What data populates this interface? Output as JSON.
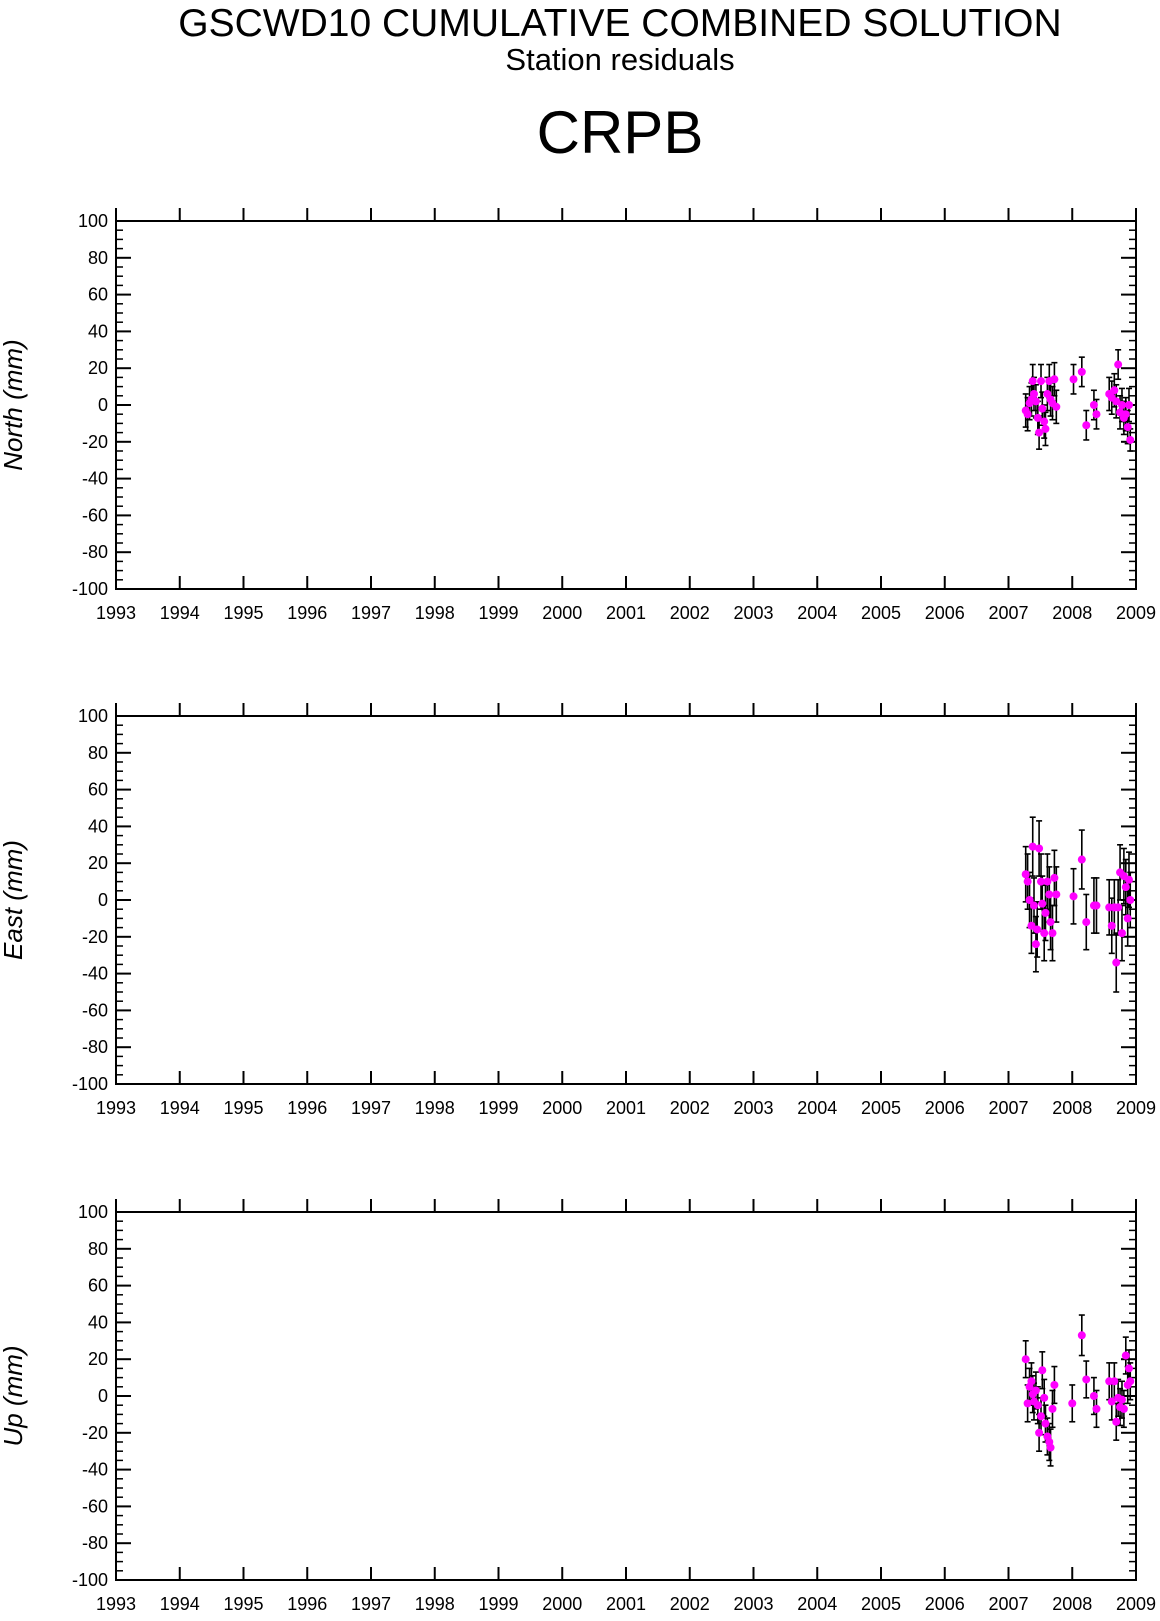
{
  "header": {
    "title": "GSCWD10 CUMULATIVE COMBINED SOLUTION",
    "subtitle": "Station residuals",
    "station": "CRPB"
  },
  "colors": {
    "point": "#ff00ff",
    "errorbar": "#000000",
    "axis": "#000000"
  },
  "chart_data": [
    {
      "type": "scatter",
      "ylabel": "North (mm)",
      "xlim": [
        1993,
        2009
      ],
      "ylim": [
        -100,
        100
      ],
      "x_ticks": [
        "1993",
        "1994",
        "1995",
        "1996",
        "1997",
        "1998",
        "1999",
        "2000",
        "2001",
        "2002",
        "2003",
        "2004",
        "2005",
        "2006",
        "2007",
        "2008",
        "2009"
      ],
      "y_ticks": [
        "100",
        "80",
        "60",
        "40",
        "20",
        "0",
        "-20",
        "-40",
        "-60",
        "-80",
        "-100"
      ],
      "grid": false,
      "points": [
        {
          "x": 2007.27,
          "y": -3,
          "err": 9
        },
        {
          "x": 2007.3,
          "y": -5,
          "err": 9
        },
        {
          "x": 2007.33,
          "y": 1,
          "err": 9
        },
        {
          "x": 2007.36,
          "y": 3,
          "err": 9
        },
        {
          "x": 2007.38,
          "y": 13,
          "err": 9
        },
        {
          "x": 2007.4,
          "y": 6,
          "err": 9
        },
        {
          "x": 2007.43,
          "y": 2,
          "err": 9
        },
        {
          "x": 2007.46,
          "y": -7,
          "err": 9
        },
        {
          "x": 2007.48,
          "y": -15,
          "err": 9
        },
        {
          "x": 2007.51,
          "y": 13,
          "err": 9
        },
        {
          "x": 2007.53,
          "y": -2,
          "err": 9
        },
        {
          "x": 2007.56,
          "y": -9,
          "err": 9
        },
        {
          "x": 2007.58,
          "y": -13,
          "err": 9
        },
        {
          "x": 2007.61,
          "y": 6,
          "err": 9
        },
        {
          "x": 2007.64,
          "y": 13,
          "err": 9
        },
        {
          "x": 2007.66,
          "y": 3,
          "err": 9
        },
        {
          "x": 2007.69,
          "y": 1,
          "err": 9
        },
        {
          "x": 2007.72,
          "y": 14,
          "err": 9
        },
        {
          "x": 2007.75,
          "y": -1,
          "err": 9
        },
        {
          "x": 2008.02,
          "y": 14,
          "err": 8
        },
        {
          "x": 2008.15,
          "y": 18,
          "err": 8
        },
        {
          "x": 2008.22,
          "y": -11,
          "err": 8
        },
        {
          "x": 2008.34,
          "y": 0,
          "err": 8
        },
        {
          "x": 2008.38,
          "y": -5,
          "err": 8
        },
        {
          "x": 2008.58,
          "y": 6,
          "err": 9
        },
        {
          "x": 2008.62,
          "y": 4,
          "err": 9
        },
        {
          "x": 2008.66,
          "y": 8,
          "err": 9
        },
        {
          "x": 2008.69,
          "y": 2,
          "err": 9
        },
        {
          "x": 2008.72,
          "y": 22,
          "err": 8
        },
        {
          "x": 2008.75,
          "y": -4,
          "err": 9
        },
        {
          "x": 2008.78,
          "y": 0,
          "err": 9
        },
        {
          "x": 2008.81,
          "y": -7,
          "err": 9
        },
        {
          "x": 2008.84,
          "y": -5,
          "err": 9
        },
        {
          "x": 2008.87,
          "y": -12,
          "err": 9
        },
        {
          "x": 2008.89,
          "y": 0,
          "err": 9
        },
        {
          "x": 2008.91,
          "y": -19,
          "err": 6
        }
      ]
    },
    {
      "type": "scatter",
      "ylabel": "East (mm)",
      "xlim": [
        1993,
        2009
      ],
      "ylim": [
        -100,
        100
      ],
      "x_ticks": [
        "1993",
        "1994",
        "1995",
        "1996",
        "1997",
        "1998",
        "1999",
        "2000",
        "2001",
        "2002",
        "2003",
        "2004",
        "2005",
        "2006",
        "2007",
        "2008",
        "2009"
      ],
      "y_ticks": [
        "100",
        "80",
        "60",
        "40",
        "20",
        "0",
        "-20",
        "-40",
        "-60",
        "-80",
        "-100"
      ],
      "grid": false,
      "points": [
        {
          "x": 2007.27,
          "y": 14,
          "err": 15
        },
        {
          "x": 2007.3,
          "y": 10,
          "err": 15
        },
        {
          "x": 2007.33,
          "y": 0,
          "err": 15
        },
        {
          "x": 2007.36,
          "y": -14,
          "err": 15
        },
        {
          "x": 2007.38,
          "y": 29,
          "err": 16
        },
        {
          "x": 2007.4,
          "y": -3,
          "err": 15
        },
        {
          "x": 2007.43,
          "y": -24,
          "err": 15
        },
        {
          "x": 2007.45,
          "y": -16,
          "err": 15
        },
        {
          "x": 2007.48,
          "y": 28,
          "err": 15
        },
        {
          "x": 2007.51,
          "y": 10,
          "err": 15
        },
        {
          "x": 2007.53,
          "y": -2,
          "err": 15
        },
        {
          "x": 2007.56,
          "y": -18,
          "err": 15
        },
        {
          "x": 2007.58,
          "y": -7,
          "err": 15
        },
        {
          "x": 2007.61,
          "y": 10,
          "err": 15
        },
        {
          "x": 2007.64,
          "y": 3,
          "err": 15
        },
        {
          "x": 2007.66,
          "y": -12,
          "err": 15
        },
        {
          "x": 2007.69,
          "y": -18,
          "err": 15
        },
        {
          "x": 2007.72,
          "y": 12,
          "err": 15
        },
        {
          "x": 2007.75,
          "y": 3,
          "err": 15
        },
        {
          "x": 2008.02,
          "y": 2,
          "err": 15
        },
        {
          "x": 2008.15,
          "y": 22,
          "err": 16
        },
        {
          "x": 2008.22,
          "y": -12,
          "err": 15
        },
        {
          "x": 2008.34,
          "y": -3,
          "err": 15
        },
        {
          "x": 2008.38,
          "y": -3,
          "err": 15
        },
        {
          "x": 2008.58,
          "y": -4,
          "err": 15
        },
        {
          "x": 2008.62,
          "y": -14,
          "err": 15
        },
        {
          "x": 2008.66,
          "y": -4,
          "err": 15
        },
        {
          "x": 2008.69,
          "y": -34,
          "err": 16
        },
        {
          "x": 2008.72,
          "y": -4,
          "err": 15
        },
        {
          "x": 2008.75,
          "y": 15,
          "err": 15
        },
        {
          "x": 2008.78,
          "y": -18,
          "err": 15
        },
        {
          "x": 2008.81,
          "y": 13,
          "err": 15
        },
        {
          "x": 2008.84,
          "y": 7,
          "err": 15
        },
        {
          "x": 2008.87,
          "y": -10,
          "err": 15
        },
        {
          "x": 2008.89,
          "y": 11,
          "err": 15
        },
        {
          "x": 2008.91,
          "y": 0,
          "err": 15
        }
      ]
    },
    {
      "type": "scatter",
      "ylabel": "Up (mm)",
      "xlim": [
        1993,
        2009
      ],
      "ylim": [
        -100,
        100
      ],
      "x_ticks": [
        "1993",
        "1994",
        "1995",
        "1996",
        "1997",
        "1998",
        "1999",
        "2000",
        "2001",
        "2002",
        "2003",
        "2004",
        "2005",
        "2006",
        "2007",
        "2008",
        "2009"
      ],
      "y_ticks": [
        "100",
        "80",
        "60",
        "40",
        "20",
        "0",
        "-20",
        "-40",
        "-60",
        "-80",
        "-100"
      ],
      "grid": false,
      "points": [
        {
          "x": 2007.27,
          "y": 20,
          "err": 10
        },
        {
          "x": 2007.3,
          "y": -4,
          "err": 10
        },
        {
          "x": 2007.33,
          "y": 5,
          "err": 10
        },
        {
          "x": 2007.36,
          "y": 8,
          "err": 10
        },
        {
          "x": 2007.38,
          "y": 1,
          "err": 10
        },
        {
          "x": 2007.4,
          "y": -3,
          "err": 10
        },
        {
          "x": 2007.43,
          "y": 3,
          "err": 10
        },
        {
          "x": 2007.46,
          "y": -5,
          "err": 10
        },
        {
          "x": 2007.48,
          "y": -20,
          "err": 10
        },
        {
          "x": 2007.51,
          "y": -11,
          "err": 10
        },
        {
          "x": 2007.53,
          "y": 14,
          "err": 10
        },
        {
          "x": 2007.56,
          "y": -1,
          "err": 10
        },
        {
          "x": 2007.58,
          "y": -15,
          "err": 10
        },
        {
          "x": 2007.61,
          "y": -22,
          "err": 10
        },
        {
          "x": 2007.64,
          "y": -25,
          "err": 10
        },
        {
          "x": 2007.66,
          "y": -28,
          "err": 10
        },
        {
          "x": 2007.69,
          "y": -7,
          "err": 10
        },
        {
          "x": 2007.72,
          "y": 6,
          "err": 10
        },
        {
          "x": 2008.0,
          "y": -4,
          "err": 10
        },
        {
          "x": 2008.15,
          "y": 33,
          "err": 11
        },
        {
          "x": 2008.22,
          "y": 9,
          "err": 10
        },
        {
          "x": 2008.34,
          "y": 0,
          "err": 10
        },
        {
          "x": 2008.38,
          "y": -7,
          "err": 10
        },
        {
          "x": 2008.58,
          "y": 8,
          "err": 10
        },
        {
          "x": 2008.62,
          "y": -3,
          "err": 10
        },
        {
          "x": 2008.66,
          "y": 8,
          "err": 10
        },
        {
          "x": 2008.69,
          "y": -14,
          "err": 10
        },
        {
          "x": 2008.72,
          "y": -1,
          "err": 10
        },
        {
          "x": 2008.75,
          "y": -6,
          "err": 10
        },
        {
          "x": 2008.78,
          "y": -2,
          "err": 10
        },
        {
          "x": 2008.81,
          "y": -7,
          "err": 10
        },
        {
          "x": 2008.84,
          "y": 22,
          "err": 10
        },
        {
          "x": 2008.87,
          "y": 6,
          "err": 10
        },
        {
          "x": 2008.89,
          "y": 15,
          "err": 10
        },
        {
          "x": 2008.91,
          "y": 8,
          "err": 10
        }
      ]
    }
  ]
}
